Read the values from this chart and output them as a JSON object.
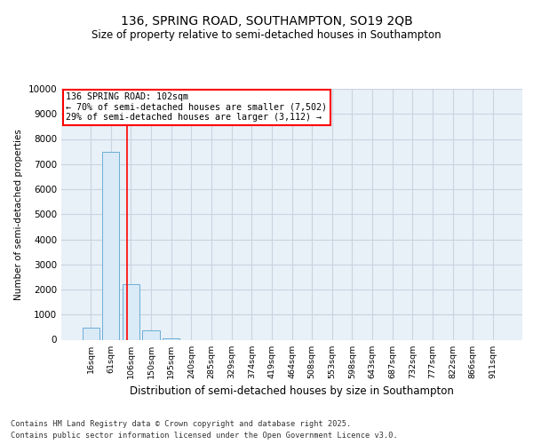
{
  "title": "136, SPRING ROAD, SOUTHAMPTON, SO19 2QB",
  "subtitle": "Size of property relative to semi-detached houses in Southampton",
  "xlabel": "Distribution of semi-detached houses by size in Southampton",
  "ylabel": "Number of semi-detached properties",
  "bin_labels": [
    "16sqm",
    "61sqm",
    "106sqm",
    "150sqm",
    "195sqm",
    "240sqm",
    "285sqm",
    "329sqm",
    "374sqm",
    "419sqm",
    "464sqm",
    "508sqm",
    "553sqm",
    "598sqm",
    "643sqm",
    "687sqm",
    "732sqm",
    "777sqm",
    "822sqm",
    "866sqm",
    "911sqm"
  ],
  "bar_values": [
    490,
    7502,
    2200,
    370,
    55,
    0,
    0,
    0,
    0,
    0,
    0,
    0,
    0,
    0,
    0,
    0,
    0,
    0,
    0,
    0,
    0
  ],
  "bar_color": "#daeaf7",
  "bar_edge_color": "#6aaed6",
  "red_line_x": 1.82,
  "annotation_title": "136 SPRING ROAD: 102sqm",
  "annotation_line1": "← 70% of semi-detached houses are smaller (7,502)",
  "annotation_line2": "29% of semi-detached houses are larger (3,112) →",
  "ylim": [
    0,
    10000
  ],
  "yticks": [
    0,
    1000,
    2000,
    3000,
    4000,
    5000,
    6000,
    7000,
    8000,
    9000,
    10000
  ],
  "footer_line1": "Contains HM Land Registry data © Crown copyright and database right 2025.",
  "footer_line2": "Contains public sector information licensed under the Open Government Licence v3.0.",
  "plot_bg_color": "#e8f0f8",
  "grid_color": "#c8d4e0"
}
